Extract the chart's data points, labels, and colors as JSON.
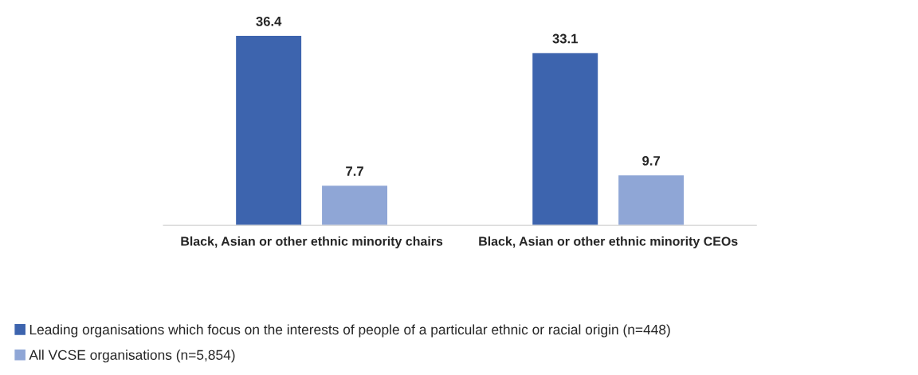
{
  "chart_data": {
    "type": "bar",
    "categories": [
      "Black, Asian or other ethnic minority chairs",
      "Black, Asian or other ethnic minority CEOs"
    ],
    "series": [
      {
        "name": "Leading organisations which focus on the interests of people of a particular ethnic or racial origin (n=448)",
        "color": "#3d64ae",
        "values": [
          36.4,
          33.1
        ]
      },
      {
        "name": "All VCSE organisations (n=5,854)",
        "color": "#8fa6d6",
        "values": [
          7.7,
          9.7
        ]
      }
    ],
    "data_labels": true,
    "grid": false,
    "legend": "bottom left"
  }
}
